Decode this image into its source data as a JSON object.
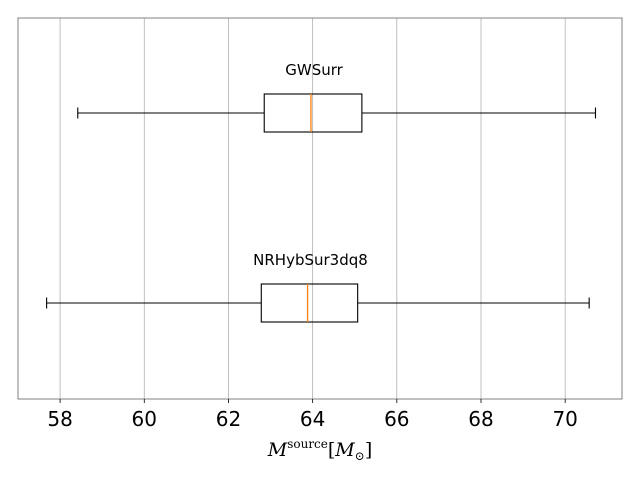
{
  "chart_data": {
    "type": "boxplot",
    "orientation": "horizontal",
    "title": "",
    "xlabel": {
      "symbol": "M",
      "superscript": "source",
      "unit_open": "[",
      "unit_symbol": "M",
      "unit_subscript": "⊙",
      "unit_close": "]"
    },
    "ylabel": "",
    "xlim": [
      57.0,
      71.35
    ],
    "xticks": [
      58,
      60,
      62,
      64,
      66,
      68,
      70
    ],
    "xtick_labels": [
      "58",
      "60",
      "62",
      "64",
      "66",
      "68",
      "70"
    ],
    "grid": "x",
    "legend": "none",
    "boxes": [
      {
        "name": "GWSurr",
        "whisker_low": 58.42,
        "q1": 62.85,
        "median": 63.96,
        "q3": 65.17,
        "whisker_high": 70.72
      },
      {
        "name": "NRHybSur3dq8",
        "whisker_low": 57.68,
        "q1": 62.78,
        "median": 63.88,
        "q3": 65.07,
        "whisker_high": 70.57
      }
    ]
  },
  "colors": {
    "median": "#ff7f0e",
    "box": "#000000",
    "grid": "#b0b0b0",
    "frame": "#808080"
  }
}
